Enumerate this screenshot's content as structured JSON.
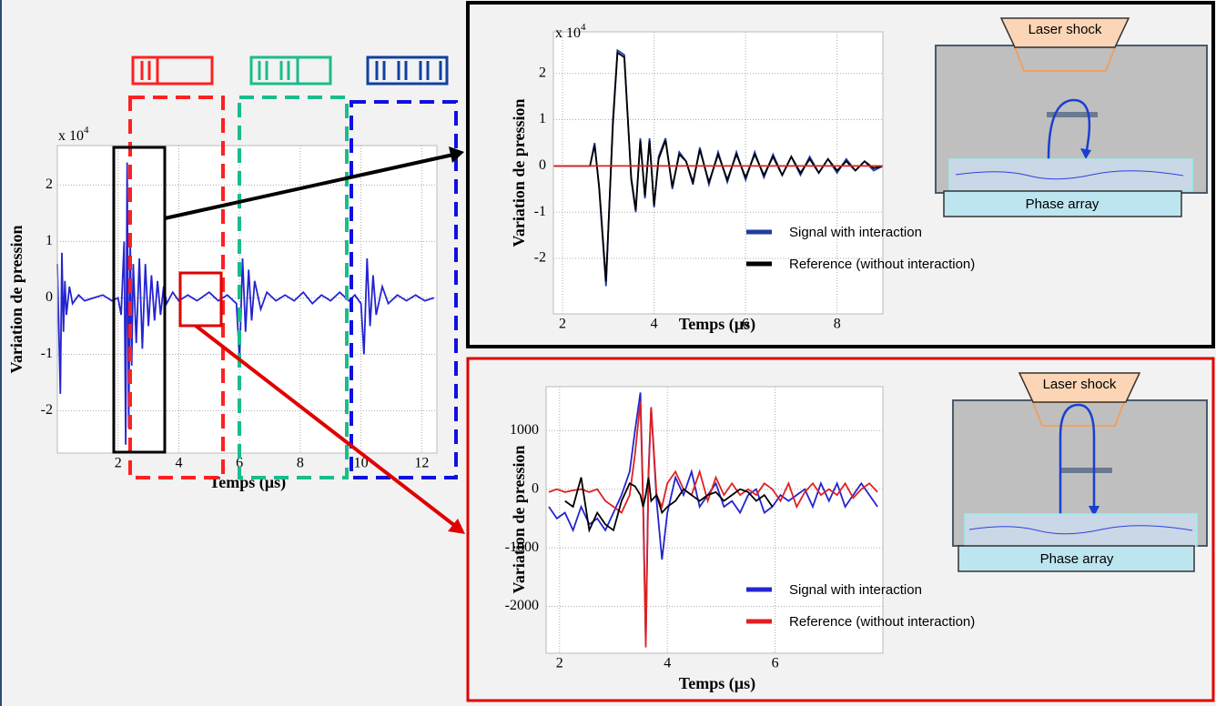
{
  "chart_data": [
    {
      "type": "line",
      "x_label": "Temps (µs)",
      "y_label": "Variation de pression",
      "multiplier": {
        "base": "x 10",
        "exponent": "4"
      },
      "x": [
        0,
        0.1,
        0.15,
        0.2,
        0.25,
        0.3,
        0.4,
        0.5,
        0.7,
        0.9,
        1.2,
        1.5,
        1.8,
        2.0,
        2.1,
        2.2,
        2.25,
        2.3,
        2.35,
        2.4,
        2.45,
        2.5,
        2.6,
        2.7,
        2.8,
        2.9,
        3.0,
        3.1,
        3.2,
        3.3,
        3.4,
        3.5,
        3.6,
        3.8,
        4.0,
        4.3,
        4.6,
        5.0,
        5.3,
        5.6,
        5.9,
        6.0,
        6.1,
        6.2,
        6.3,
        6.4,
        6.5,
        6.7,
        6.9,
        7.2,
        7.5,
        7.8,
        8.1,
        8.4,
        8.7,
        9.0,
        9.3,
        9.6,
        9.8,
        10.0,
        10.1,
        10.2,
        10.3,
        10.4,
        10.5,
        10.7,
        10.9,
        11.2,
        11.5,
        11.8,
        12.1,
        12.4
      ],
      "series": [
        {
          "color": "#2424d0",
          "values": [
            0.6,
            -1.7,
            0.8,
            -0.6,
            0.3,
            -0.3,
            0.2,
            -0.1,
            0.05,
            -0.05,
            0,
            0.05,
            -0.05,
            0,
            -0.3,
            1.0,
            -2.6,
            2.4,
            -2.3,
            1.0,
            -1.2,
            0.6,
            -0.8,
            0.7,
            -0.9,
            0.6,
            -0.5,
            0.4,
            -0.4,
            0.3,
            -0.3,
            0.2,
            -0.1,
            0.1,
            -0.05,
            0.05,
            -0.05,
            0.1,
            -0.05,
            0.05,
            -0.1,
            -1.1,
            0.7,
            -0.6,
            0.5,
            -0.4,
            0.3,
            -0.2,
            0.1,
            -0.05,
            0.05,
            -0.05,
            0.1,
            -0.1,
            0.05,
            -0.05,
            0.1,
            -0.05,
            0.05,
            -0.1,
            -1.0,
            0.7,
            -0.5,
            0.4,
            -0.3,
            0.2,
            -0.1,
            0.05,
            -0.05,
            0.05,
            -0.05,
            0
          ]
        }
      ],
      "xlim": [
        0,
        12.5
      ],
      "ylim": [
        -2.75,
        2.7
      ],
      "xticks": [
        2,
        4,
        6,
        8,
        10,
        12
      ],
      "yticks": [
        -2,
        -1,
        0,
        1,
        2
      ],
      "grid": true
    },
    {
      "type": "line",
      "x_label": "Temps (µs)",
      "y_label": "Variation de pression",
      "multiplier": {
        "base": "x 10",
        "exponent": "4"
      },
      "x": [
        1.8,
        2.6,
        2.7,
        2.8,
        2.95,
        3.1,
        3.2,
        3.35,
        3.5,
        3.6,
        3.7,
        3.8,
        3.9,
        4.0,
        4.1,
        4.25,
        4.4,
        4.55,
        4.7,
        4.85,
        5.0,
        5.2,
        5.4,
        5.6,
        5.8,
        6.0,
        6.2,
        6.4,
        6.6,
        6.8,
        7.0,
        7.2,
        7.4,
        7.6,
        7.8,
        8.0,
        8.2,
        8.4,
        8.6,
        8.8,
        9.0
      ],
      "series": [
        {
          "name": "Signal with interaction",
          "color": "#1f3f9f",
          "values": [
            0,
            0,
            0.5,
            -0.5,
            -2.6,
            1.0,
            2.5,
            2.4,
            -0.3,
            -1.0,
            0.6,
            -0.7,
            0.6,
            -0.9,
            0.2,
            0.6,
            -0.5,
            0.3,
            0.1,
            -0.4,
            0.4,
            -0.4,
            0.3,
            -0.35,
            0.3,
            -0.3,
            0.3,
            -0.25,
            0.25,
            -0.2,
            0.2,
            -0.2,
            0.2,
            -0.15,
            0.15,
            -0.15,
            0.15,
            -0.1,
            0.1,
            -0.1,
            0
          ]
        },
        {
          "name": "Reference (without interaction)",
          "color": "#000000",
          "values": [
            0,
            0,
            0.45,
            -0.45,
            -2.5,
            0.9,
            2.45,
            2.35,
            -0.25,
            -0.95,
            0.55,
            -0.65,
            0.55,
            -0.85,
            0.15,
            0.55,
            -0.45,
            0.25,
            0.1,
            -0.35,
            0.35,
            -0.35,
            0.25,
            -0.3,
            0.25,
            -0.25,
            0.25,
            -0.2,
            0.2,
            -0.2,
            0.2,
            -0.15,
            0.15,
            -0.15,
            0.15,
            -0.1,
            0.1,
            -0.1,
            0.1,
            -0.05,
            0
          ]
        },
        {
          "color": "#e02020",
          "values": [
            0,
            0,
            0,
            0,
            0,
            0,
            0,
            0,
            0,
            0,
            0,
            0,
            0,
            0,
            0,
            0,
            0,
            0,
            0,
            0,
            0,
            0,
            0,
            0,
            0,
            0,
            0,
            0,
            0,
            0,
            0,
            0,
            0,
            0,
            0,
            0,
            0,
            0,
            0,
            0,
            0
          ]
        }
      ],
      "xlim": [
        1.8,
        9
      ],
      "ylim": [
        -3.2,
        2.9
      ],
      "xticks": [
        2,
        4,
        6,
        8
      ],
      "yticks": [
        -2,
        -1,
        0,
        1,
        2
      ],
      "grid": true
    },
    {
      "type": "line",
      "x_label": "Temps (µs)",
      "y_label": "Variation de pression",
      "x": [
        1.8,
        1.95,
        2.1,
        2.25,
        2.4,
        2.55,
        2.7,
        2.85,
        3.0,
        3.15,
        3.3,
        3.4,
        3.5,
        3.55,
        3.6,
        3.65,
        3.7,
        3.8,
        3.9,
        4.0,
        4.15,
        4.3,
        4.45,
        4.6,
        4.75,
        4.9,
        5.05,
        5.2,
        5.35,
        5.5,
        5.65,
        5.8,
        5.95,
        6.1,
        6.25,
        6.4,
        6.55,
        6.7,
        6.85,
        7.0,
        7.15,
        7.3,
        7.45,
        7.6,
        7.75,
        7.9
      ],
      "series": [
        {
          "name": "Signal with interaction",
          "color": "#2424d0",
          "values": [
            -300,
            -500,
            -400,
            -700,
            -300,
            -600,
            -500,
            -700,
            -400,
            -100,
            300,
            1000,
            1650,
            -200,
            -2600,
            300,
            1400,
            -200,
            -1200,
            -400,
            200,
            -100,
            300,
            -300,
            -100,
            100,
            -300,
            -200,
            -400,
            -100,
            0,
            -400,
            -300,
            -100,
            -200,
            -100,
            0,
            -300,
            100,
            -200,
            100,
            -300,
            -100,
            100,
            -100,
            -300
          ]
        },
        {
          "name": "Reference (without interaction)",
          "color": "#e02020",
          "values": [
            -50,
            0,
            -50,
            -20,
            0,
            -50,
            0,
            -200,
            -300,
            -400,
            -100,
            600,
            1500,
            -300,
            -2700,
            200,
            1400,
            -100,
            -300,
            100,
            300,
            0,
            -100,
            300,
            -200,
            200,
            -100,
            100,
            -100,
            0,
            -100,
            100,
            0,
            -200,
            100,
            -300,
            -50,
            100,
            -100,
            0,
            -100,
            100,
            -150,
            0,
            100,
            -50
          ]
        },
        {
          "color": "#000000",
          "values": [
            null,
            null,
            -200,
            -300,
            200,
            -700,
            -400,
            -600,
            -700,
            -200,
            100,
            50,
            -100,
            -300,
            -100,
            200,
            -200,
            -100,
            -400,
            -300,
            -200,
            0,
            -100,
            -200,
            -100,
            -50,
            -200,
            -100,
            0,
            -50,
            -200,
            -100,
            -300,
            null,
            null,
            null,
            null,
            null,
            null,
            null,
            null,
            null,
            null,
            null,
            null,
            null
          ]
        }
      ],
      "xlim": [
        1.75,
        8
      ],
      "ylim": [
        -2800,
        1750
      ],
      "xticks": [
        2,
        4,
        6
      ],
      "yticks": [
        -2000,
        -1000,
        0,
        1000
      ],
      "grid": true
    }
  ],
  "diagrams": [
    {
      "top_label": "Laser shock",
      "bottom_label": "Phase array"
    },
    {
      "top_label": "Laser shock",
      "bottom_label": "Phase array"
    }
  ]
}
